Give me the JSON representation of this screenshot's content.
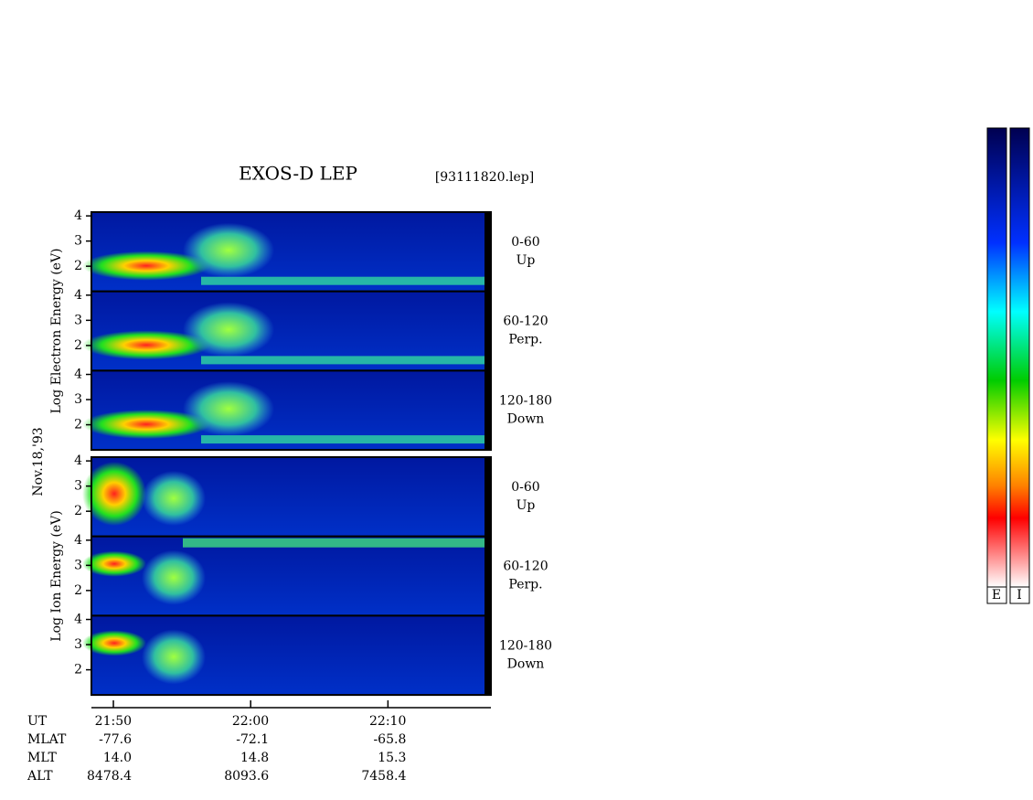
{
  "chart_data": {
    "type": "spectrogram",
    "title": "EXOS-D LEP",
    "file": "[93111820.lep]",
    "date": "Nov.18,'93",
    "groups": [
      {
        "ylabel": "Log Electron Energy (eV)",
        "panels": [
          {
            "angle": "0-60",
            "direction": "Up"
          },
          {
            "angle": "60-120",
            "direction": "Perp."
          },
          {
            "angle": "120-180",
            "direction": "Down"
          }
        ]
      },
      {
        "ylabel": "Log Ion Energy (eV)",
        "panels": [
          {
            "angle": "0-60",
            "direction": "Up"
          },
          {
            "angle": "60-120",
            "direction": "Perp."
          },
          {
            "angle": "120-180",
            "direction": "Down"
          }
        ]
      }
    ],
    "ylim": [
      1,
      4.15
    ],
    "yticks": [
      2,
      3,
      4
    ],
    "xlim": [
      1308.4,
      1337.5
    ],
    "xticks": [
      {
        "value": 1310,
        "label": "21:50"
      },
      {
        "value": 1320,
        "label": "22:00"
      },
      {
        "value": 1330,
        "label": "22:10"
      }
    ],
    "ephemeris": [
      {
        "name": "UT",
        "values": [
          "21:50",
          "22:00",
          "22:10"
        ]
      },
      {
        "name": "MLAT",
        "values": [
          "-77.6",
          "-72.1",
          "-65.8"
        ]
      },
      {
        "name": "MLT",
        "values": [
          "14.0",
          "14.8",
          "15.3"
        ]
      },
      {
        "name": "ALT",
        "values": [
          "8478.4",
          "8093.6",
          "7458.4"
        ]
      }
    ],
    "colorbar_labels": [
      "E",
      "I"
    ]
  }
}
